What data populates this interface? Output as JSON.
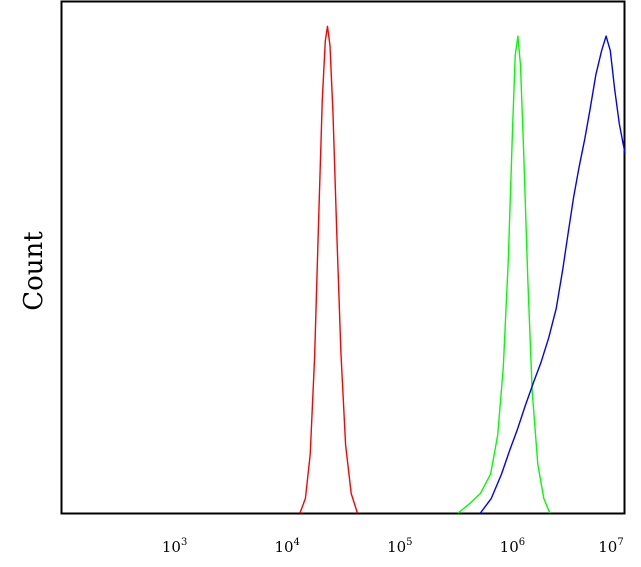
{
  "chart_data": {
    "type": "line",
    "title": "",
    "xlabel": "",
    "ylabel": "Count",
    "x_scale": "log",
    "xlim": [
      100,
      10000000
    ],
    "ylim": [
      0,
      1.05
    ],
    "grid": false,
    "legend": "none",
    "x_ticks": [
      {
        "value": 1000,
        "base": "10",
        "exp": "3"
      },
      {
        "value": 10000,
        "base": "10",
        "exp": "4"
      },
      {
        "value": 100000,
        "base": "10",
        "exp": "5"
      },
      {
        "value": 1000000,
        "base": "10",
        "exp": "6"
      },
      {
        "value": 10000000,
        "base": "10",
        "exp": "7"
      }
    ],
    "series": [
      {
        "color": "#ff0000",
        "points": [
          [
            13000,
            0.0
          ],
          [
            14500,
            0.03
          ],
          [
            16000,
            0.12
          ],
          [
            17500,
            0.32
          ],
          [
            19000,
            0.6
          ],
          [
            20500,
            0.85
          ],
          [
            21800,
            0.97
          ],
          [
            22800,
            1.0
          ],
          [
            24000,
            0.96
          ],
          [
            25500,
            0.82
          ],
          [
            27500,
            0.58
          ],
          [
            30000,
            0.33
          ],
          [
            33000,
            0.14
          ],
          [
            37000,
            0.04
          ],
          [
            42000,
            0.0
          ]
        ]
      },
      {
        "color": "#00ff00",
        "points": [
          [
            330000,
            0.0
          ],
          [
            420000,
            0.02
          ],
          [
            520000,
            0.04
          ],
          [
            640000,
            0.08
          ],
          [
            740000,
            0.16
          ],
          [
            830000,
            0.3
          ],
          [
            920000,
            0.52
          ],
          [
            1000000,
            0.78
          ],
          [
            1060000,
            0.94
          ],
          [
            1120000,
            0.98
          ],
          [
            1180000,
            0.92
          ],
          [
            1260000,
            0.74
          ],
          [
            1370000,
            0.48
          ],
          [
            1500000,
            0.25
          ],
          [
            1680000,
            0.1
          ],
          [
            1900000,
            0.03
          ],
          [
            2150000,
            0.0
          ]
        ]
      },
      {
        "color": "#0000ff",
        "points": [
          [
            520000,
            0.0
          ],
          [
            650000,
            0.03
          ],
          [
            800000,
            0.08
          ],
          [
            950000,
            0.13
          ],
          [
            1100000,
            0.17
          ],
          [
            1300000,
            0.22
          ],
          [
            1550000,
            0.27
          ],
          [
            1800000,
            0.31
          ],
          [
            2100000,
            0.36
          ],
          [
            2450000,
            0.42
          ],
          [
            2800000,
            0.5
          ],
          [
            3150000,
            0.58
          ],
          [
            3500000,
            0.65
          ],
          [
            3900000,
            0.71
          ],
          [
            4400000,
            0.77
          ],
          [
            4900000,
            0.83
          ],
          [
            5500000,
            0.9
          ],
          [
            6200000,
            0.95
          ],
          [
            6800000,
            0.98
          ],
          [
            7400000,
            0.95
          ],
          [
            8100000,
            0.87
          ],
          [
            8900000,
            0.8
          ],
          [
            9600000,
            0.76
          ],
          [
            10000000,
            0.74
          ]
        ]
      }
    ]
  }
}
